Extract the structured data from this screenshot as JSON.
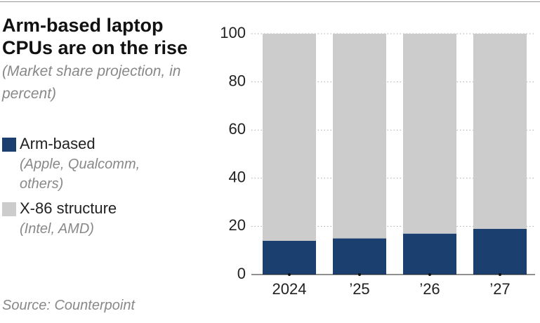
{
  "chart_data": {
    "type": "stacked-bar",
    "title": "Arm-based laptop CPUs are on the rise",
    "subtitle": "(Market share projection, in percent)",
    "source": "Source: Counterpoint",
    "categories": [
      "2024",
      "’25",
      "’26",
      "’27"
    ],
    "series": [
      {
        "name": "Arm-based",
        "description": "(Apple, Qualcomm, others)",
        "color": "#1b3f6e",
        "values": [
          14,
          15,
          17,
          19
        ]
      },
      {
        "name": "X-86 structure",
        "description": "(Intel, AMD)",
        "color": "#cccccc",
        "values": [
          86,
          85,
          83,
          81
        ]
      }
    ],
    "ylim": [
      0,
      100
    ],
    "yticks": [
      0,
      20,
      40,
      60,
      80,
      100
    ],
    "grid": true
  }
}
